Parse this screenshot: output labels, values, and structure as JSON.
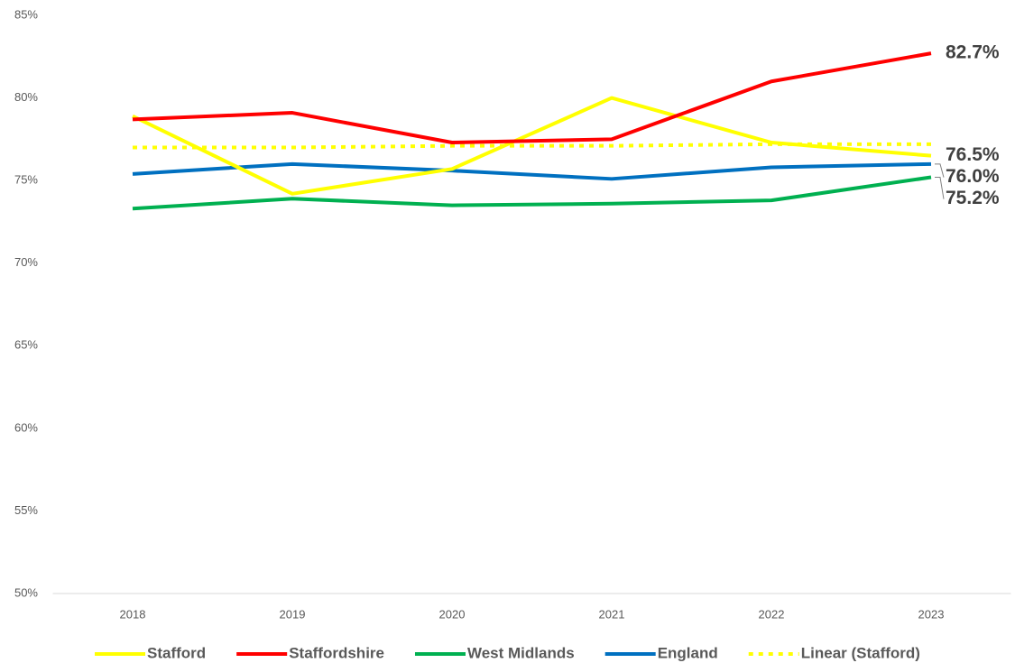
{
  "chart_data": {
    "type": "line",
    "categories": [
      "2018",
      "2019",
      "2020",
      "2021",
      "2022",
      "2023"
    ],
    "series": [
      {
        "name": "Stafford",
        "color": "#ffff00",
        "values": [
          78.9,
          74.2,
          75.7,
          80.0,
          77.3,
          76.5
        ],
        "value_labels": [
          null,
          null,
          null,
          null,
          null,
          "76.5%"
        ]
      },
      {
        "name": "Staffordshire",
        "color": "#ff0000",
        "values": [
          78.7,
          79.1,
          77.3,
          77.5,
          81.0,
          82.7
        ],
        "value_labels": [
          null,
          null,
          null,
          null,
          null,
          "82.7%"
        ]
      },
      {
        "name": "West Midlands",
        "color": "#00b050",
        "values": [
          73.3,
          73.9,
          73.5,
          73.6,
          73.8,
          75.2
        ],
        "value_labels": [
          null,
          null,
          null,
          null,
          null,
          "75.2%"
        ]
      },
      {
        "name": "England",
        "color": "#0070c0",
        "values": [
          75.4,
          76.0,
          75.6,
          75.1,
          75.8,
          76.0
        ],
        "value_labels": [
          null,
          null,
          null,
          null,
          null,
          "76.0%"
        ]
      },
      {
        "name": "Linear (Stafford)",
        "color": "#ffff00",
        "dash": "dot",
        "values": [
          77.0,
          77.0,
          77.1,
          77.1,
          77.2,
          77.2
        ]
      }
    ],
    "ylim": [
      50,
      85
    ],
    "yticks": [
      {
        "value": 50,
        "label": "50%"
      },
      {
        "value": 55,
        "label": "55%"
      },
      {
        "value": 60,
        "label": "60%"
      },
      {
        "value": 65,
        "label": "65%"
      },
      {
        "value": 70,
        "label": "70%"
      },
      {
        "value": 75,
        "label": "75%"
      },
      {
        "value": 80,
        "label": "80%"
      },
      {
        "value": 85,
        "label": "85%"
      }
    ],
    "grid": false,
    "legend": "bottom"
  }
}
